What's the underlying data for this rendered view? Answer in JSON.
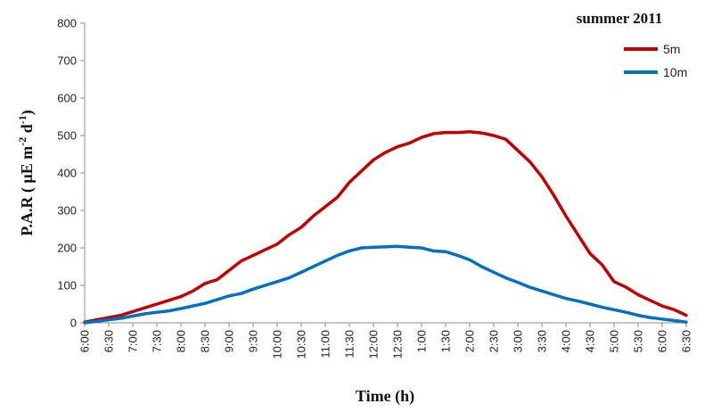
{
  "chart_data": {
    "type": "line",
    "title": "",
    "xlabel": "Time (h)",
    "ylabel": "P.A.R ( μE  m-2 d-1)",
    "ylabel_parts": {
      "base": "P.A.R ( μE  m",
      "sup1": "-2",
      "mid": " d",
      "sup2": "-1",
      "end": ")"
    },
    "legend_title": "summer 2011",
    "legend_position": "top-right",
    "grid": false,
    "ylim": [
      0,
      800
    ],
    "yticks": [
      0,
      100,
      200,
      300,
      400,
      500,
      600,
      700,
      800
    ],
    "categories": [
      "6:00",
      "6:30",
      "7:00",
      "7:30",
      "8:00",
      "8:30",
      "9:00",
      "9:30",
      "10:00",
      "10:30",
      "11:00",
      "11:30",
      "12:00",
      "12:30",
      "1:00",
      "1:30",
      "2:00",
      "2:30",
      "3:00",
      "3:30",
      "4:00",
      "4:30",
      "5:00",
      "5:30",
      "6:00",
      "6:30"
    ],
    "x": [
      0,
      0.25,
      0.5,
      0.75,
      1,
      1.25,
      1.5,
      1.75,
      2,
      2.25,
      2.5,
      2.75,
      3,
      3.25,
      3.5,
      3.75,
      4,
      4.25,
      4.5,
      4.75,
      5,
      5.25,
      5.5,
      5.75,
      6,
      6.25,
      6.5,
      6.75,
      7,
      7.25,
      7.5,
      7.75,
      8,
      8.25,
      8.5,
      8.75,
      9,
      9.25,
      9.5,
      9.75,
      10,
      10.25,
      10.5,
      10.75,
      11,
      11.25,
      11.5,
      11.75,
      12,
      12.25,
      12.5
    ],
    "series": [
      {
        "name": "5m",
        "color": "#c00000",
        "values": [
          2,
          8,
          14,
          20,
          30,
          40,
          50,
          60,
          70,
          85,
          105,
          115,
          140,
          165,
          180,
          195,
          210,
          235,
          255,
          285,
          310,
          335,
          375,
          405,
          435,
          455,
          470,
          480,
          495,
          505,
          508,
          508,
          510,
          507,
          500,
          490,
          460,
          430,
          390,
          340,
          285,
          235,
          185,
          155,
          110,
          95,
          75,
          60,
          45,
          35,
          20
        ]
      },
      {
        "name": "10m",
        "color": "#0070c0",
        "values": [
          0,
          4,
          8,
          12,
          18,
          24,
          28,
          32,
          38,
          45,
          52,
          62,
          72,
          78,
          90,
          100,
          110,
          120,
          135,
          150,
          165,
          180,
          192,
          200,
          202,
          203,
          204,
          202,
          200,
          192,
          190,
          180,
          168,
          150,
          135,
          120,
          108,
          95,
          85,
          75,
          65,
          58,
          50,
          42,
          35,
          28,
          20,
          14,
          10,
          6,
          2
        ]
      }
    ]
  }
}
